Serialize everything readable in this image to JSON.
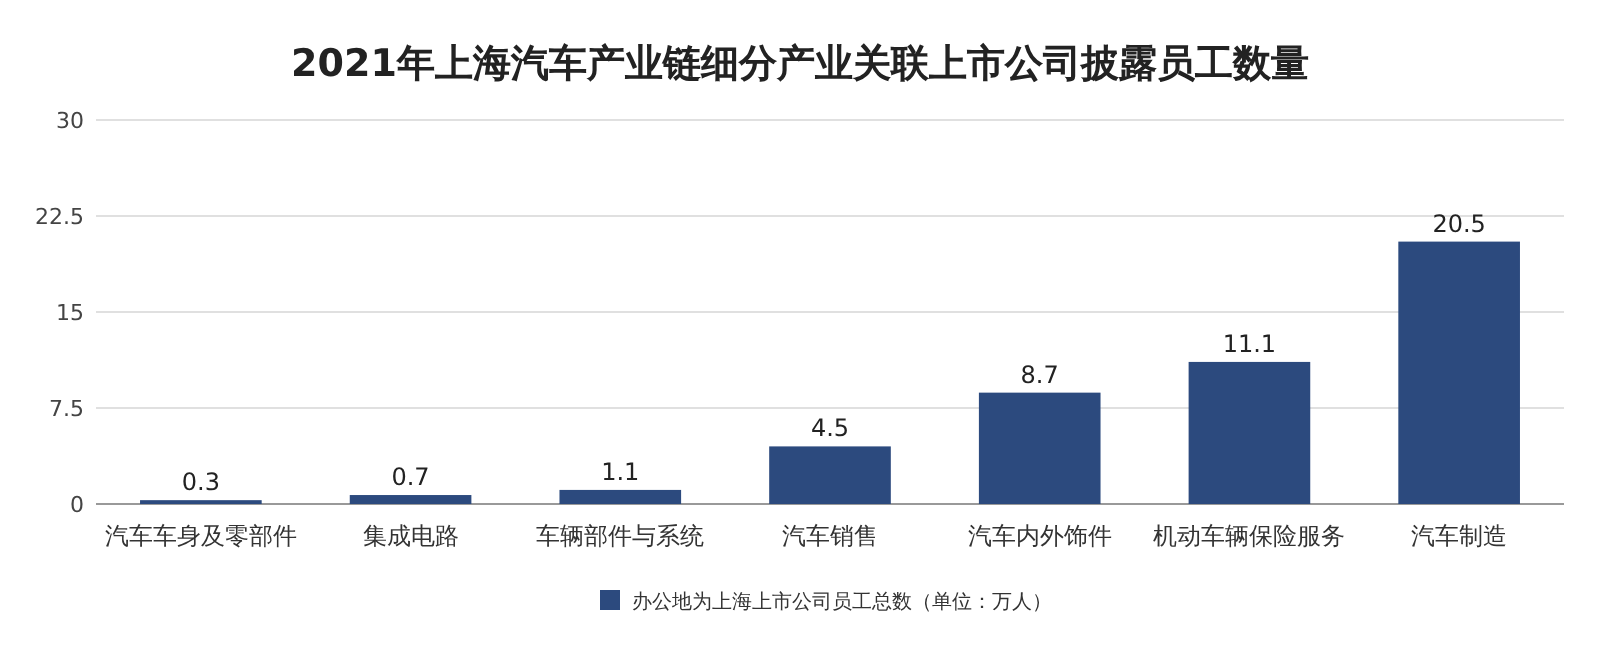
{
  "chart_data": {
    "type": "bar",
    "title": "2021年上海汽车产业链细分产业关联上市公司披露员工数量",
    "categories": [
      "汽车车身及零部件",
      "集成电路",
      "车辆部件与系统",
      "汽车销售",
      "汽车内外饰件",
      "机动车辆保险服务",
      "汽车制造"
    ],
    "series": [
      {
        "name": "办公地为上海上市公司员工总数（单位：万人）",
        "color": "#2c4a7e",
        "values": [
          0.3,
          0.7,
          1.1,
          4.5,
          8.7,
          11.1,
          20.5
        ]
      }
    ],
    "ylim": [
      0,
      30
    ],
    "yticks": [
      0,
      7.5,
      15,
      22.5,
      30
    ],
    "grid": "y",
    "data_labels": true,
    "legend": "bottom"
  }
}
